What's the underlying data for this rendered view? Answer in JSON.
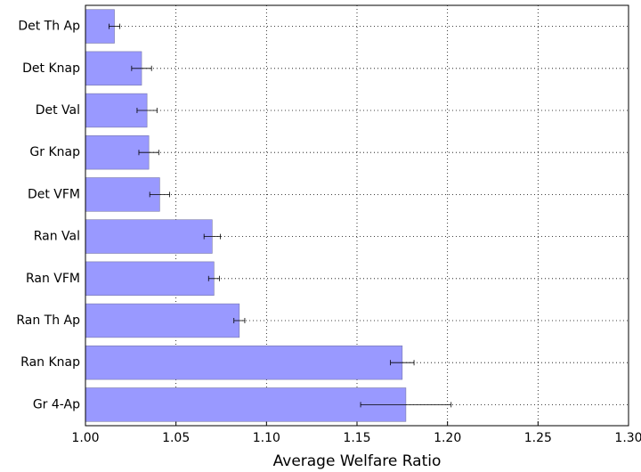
{
  "chart_data": {
    "type": "barh",
    "categories": [
      "Det Th Ap",
      "Det Knap",
      "Det Val",
      "Gr Knap",
      "Det VFM",
      "Ran Val",
      "Ran VFM",
      "Ran Th Ap",
      "Ran Knap",
      "Gr 4-Ap"
    ],
    "values": [
      1.016,
      1.031,
      1.034,
      1.035,
      1.041,
      1.07,
      1.071,
      1.085,
      1.175,
      1.177
    ],
    "errors": [
      0.003,
      0.0055,
      0.0055,
      0.0055,
      0.0055,
      0.0045,
      0.003,
      0.003,
      0.0065,
      0.025
    ],
    "color": "#9999ff",
    "xlabel": "Average Welfare Ratio",
    "xlim": [
      1.0,
      1.3
    ],
    "xticks": [
      {
        "value": 1.0,
        "label": "1.00"
      },
      {
        "value": 1.05,
        "label": "1.05"
      },
      {
        "value": 1.1,
        "label": "1.10"
      },
      {
        "value": 1.15,
        "label": "1.15"
      },
      {
        "value": 1.2,
        "label": "1.20"
      },
      {
        "value": 1.25,
        "label": "1.25"
      },
      {
        "value": 1.3,
        "label": "1.30"
      }
    ],
    "grid": true
  }
}
